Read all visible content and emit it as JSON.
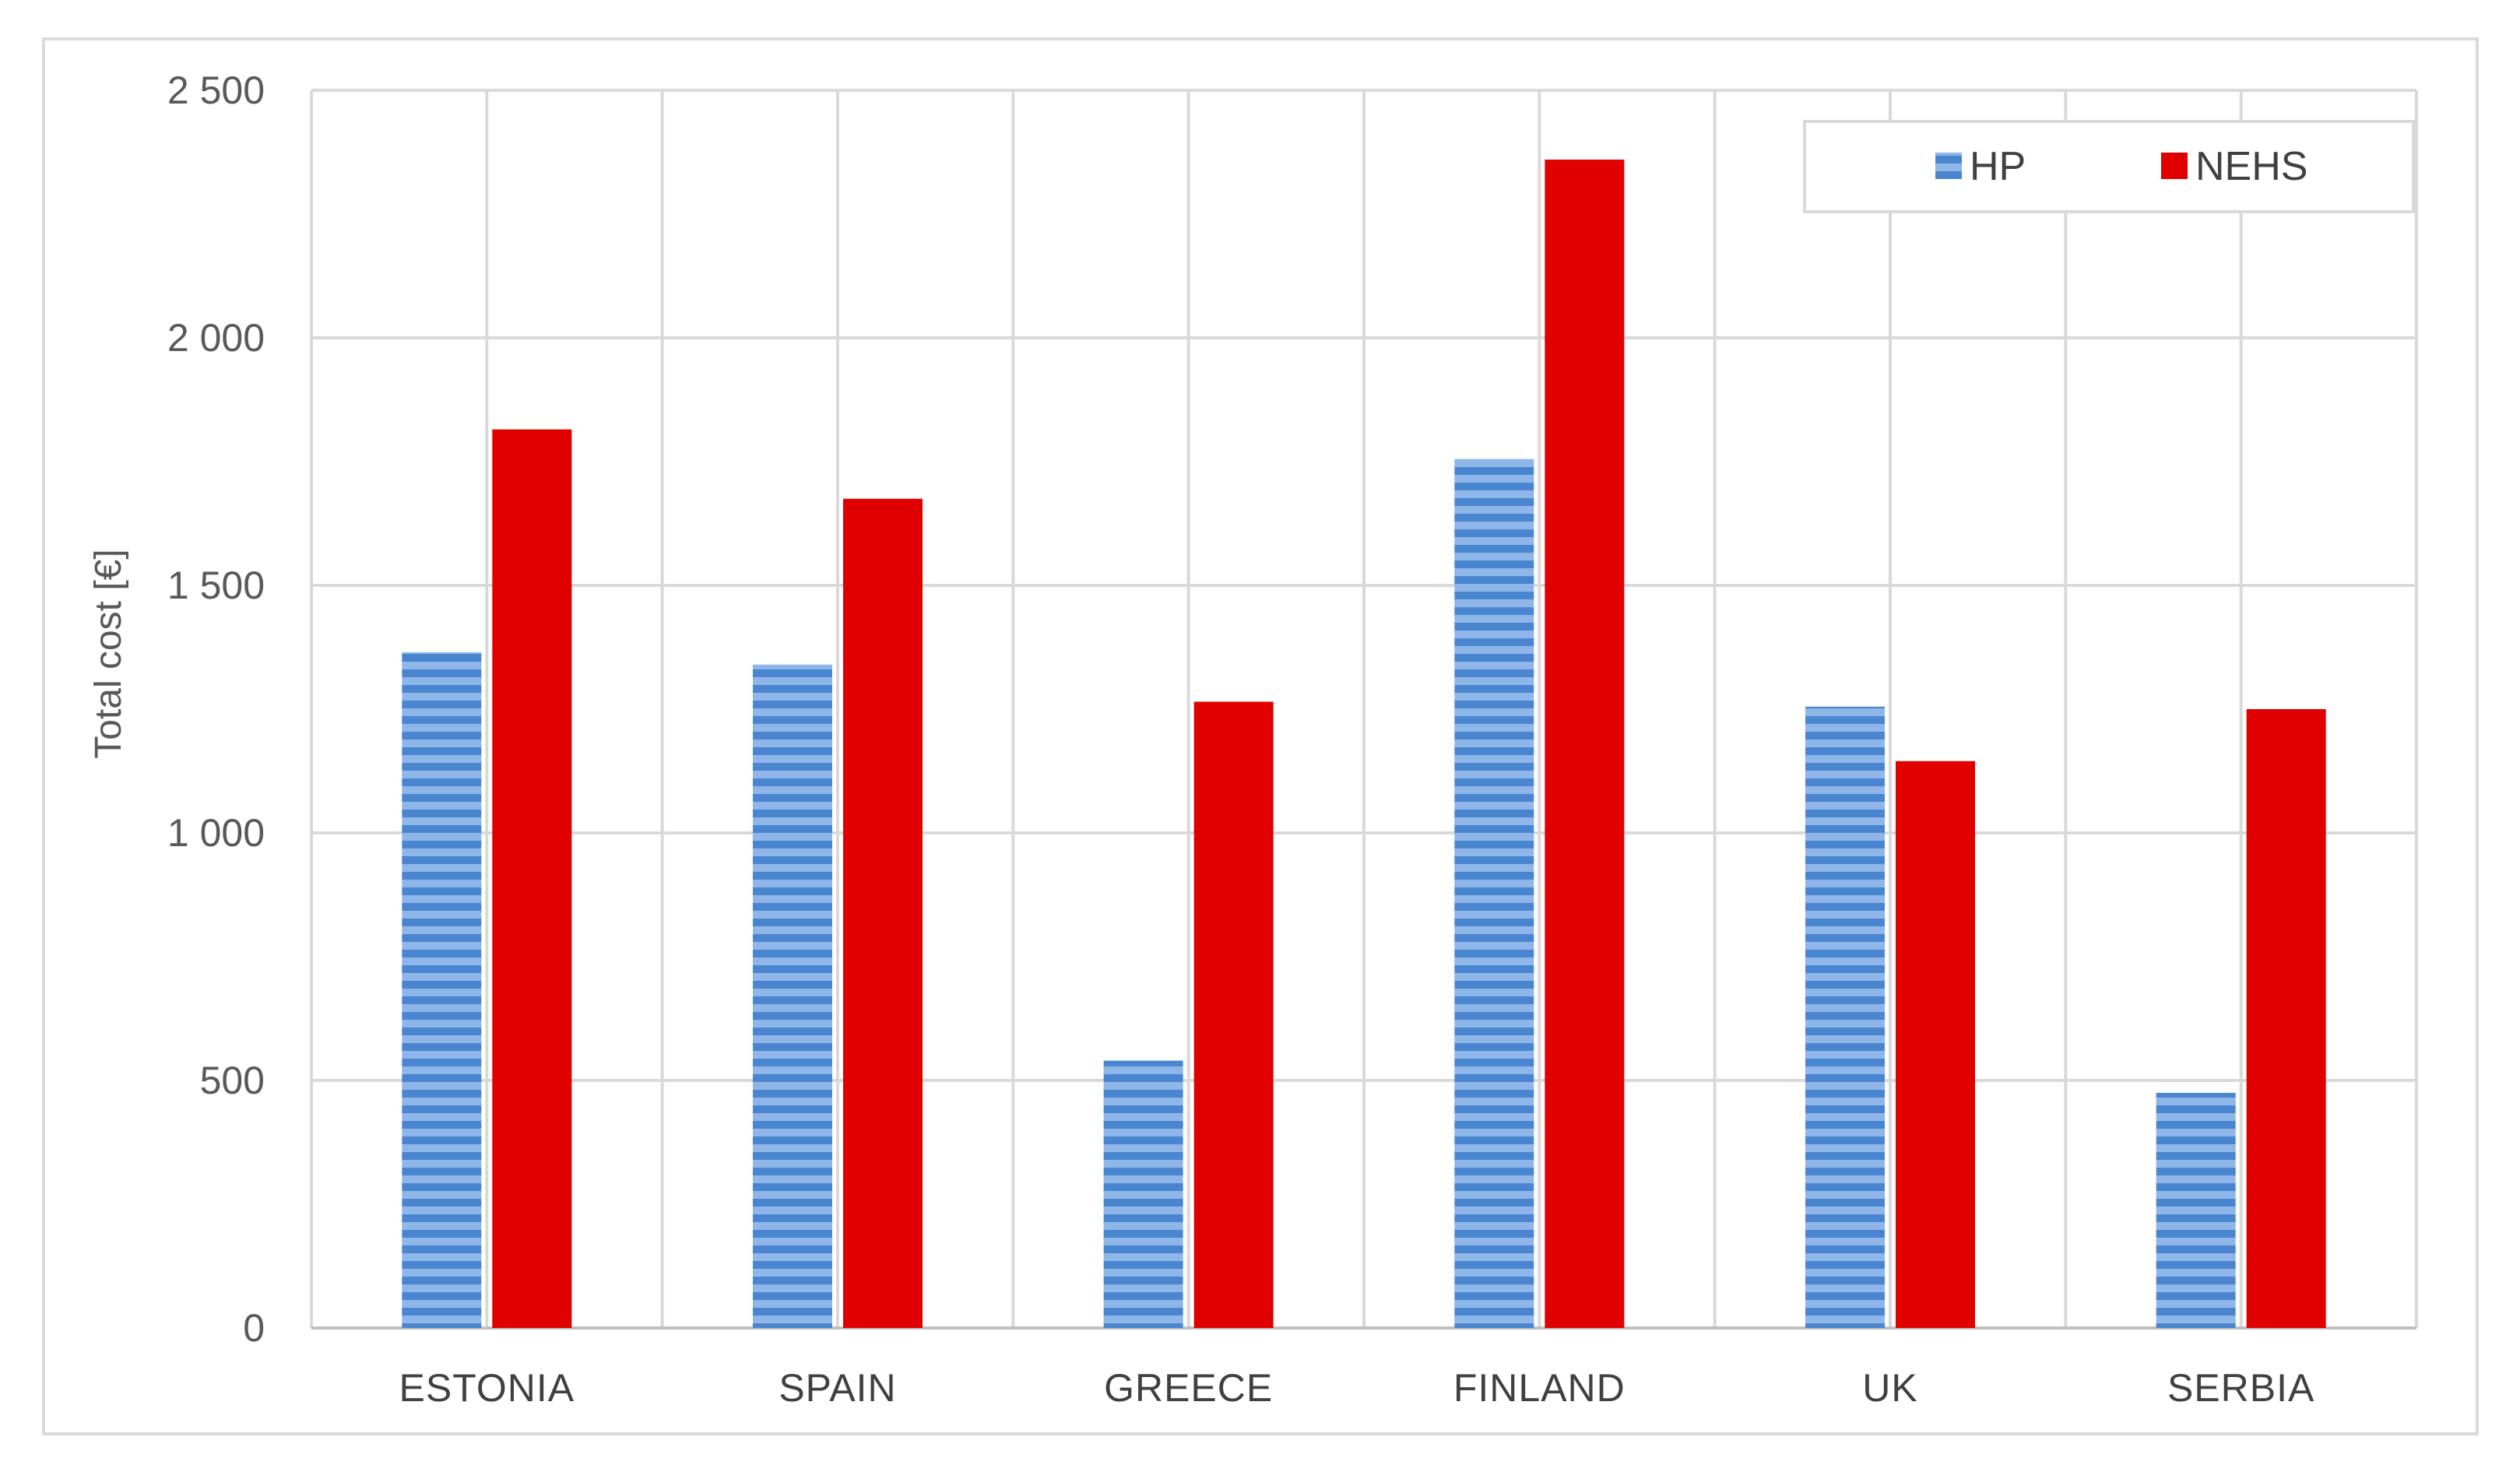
{
  "chart_data": {
    "type": "bar",
    "title": "",
    "xlabel": "",
    "ylabel": "Total cost [€]",
    "ylim": [
      0,
      2500
    ],
    "yticks": [
      0,
      500,
      1000,
      1500,
      2000,
      2500
    ],
    "ytick_labels": [
      "0",
      "500",
      "1 000",
      "1 500",
      "2 000",
      "2 500"
    ],
    "categories": [
      "ESTONIA",
      "SPAIN",
      "GREECE",
      "FINLAND",
      "UK",
      "SERBIA"
    ],
    "series": [
      {
        "name": "HP",
        "color": "#4a86d0",
        "pattern": "horizontal-stripes",
        "values": [
          1365,
          1340,
          540,
          1755,
          1255,
          475
        ]
      },
      {
        "name": "NEHS",
        "color": "#e00000",
        "pattern": "solid",
        "values": [
          1815,
          1675,
          1265,
          2360,
          1145,
          1250
        ]
      }
    ],
    "grid": {
      "horizontal": true,
      "vertical": true
    },
    "legend": {
      "position": "top-right",
      "orientation": "horizontal"
    }
  }
}
